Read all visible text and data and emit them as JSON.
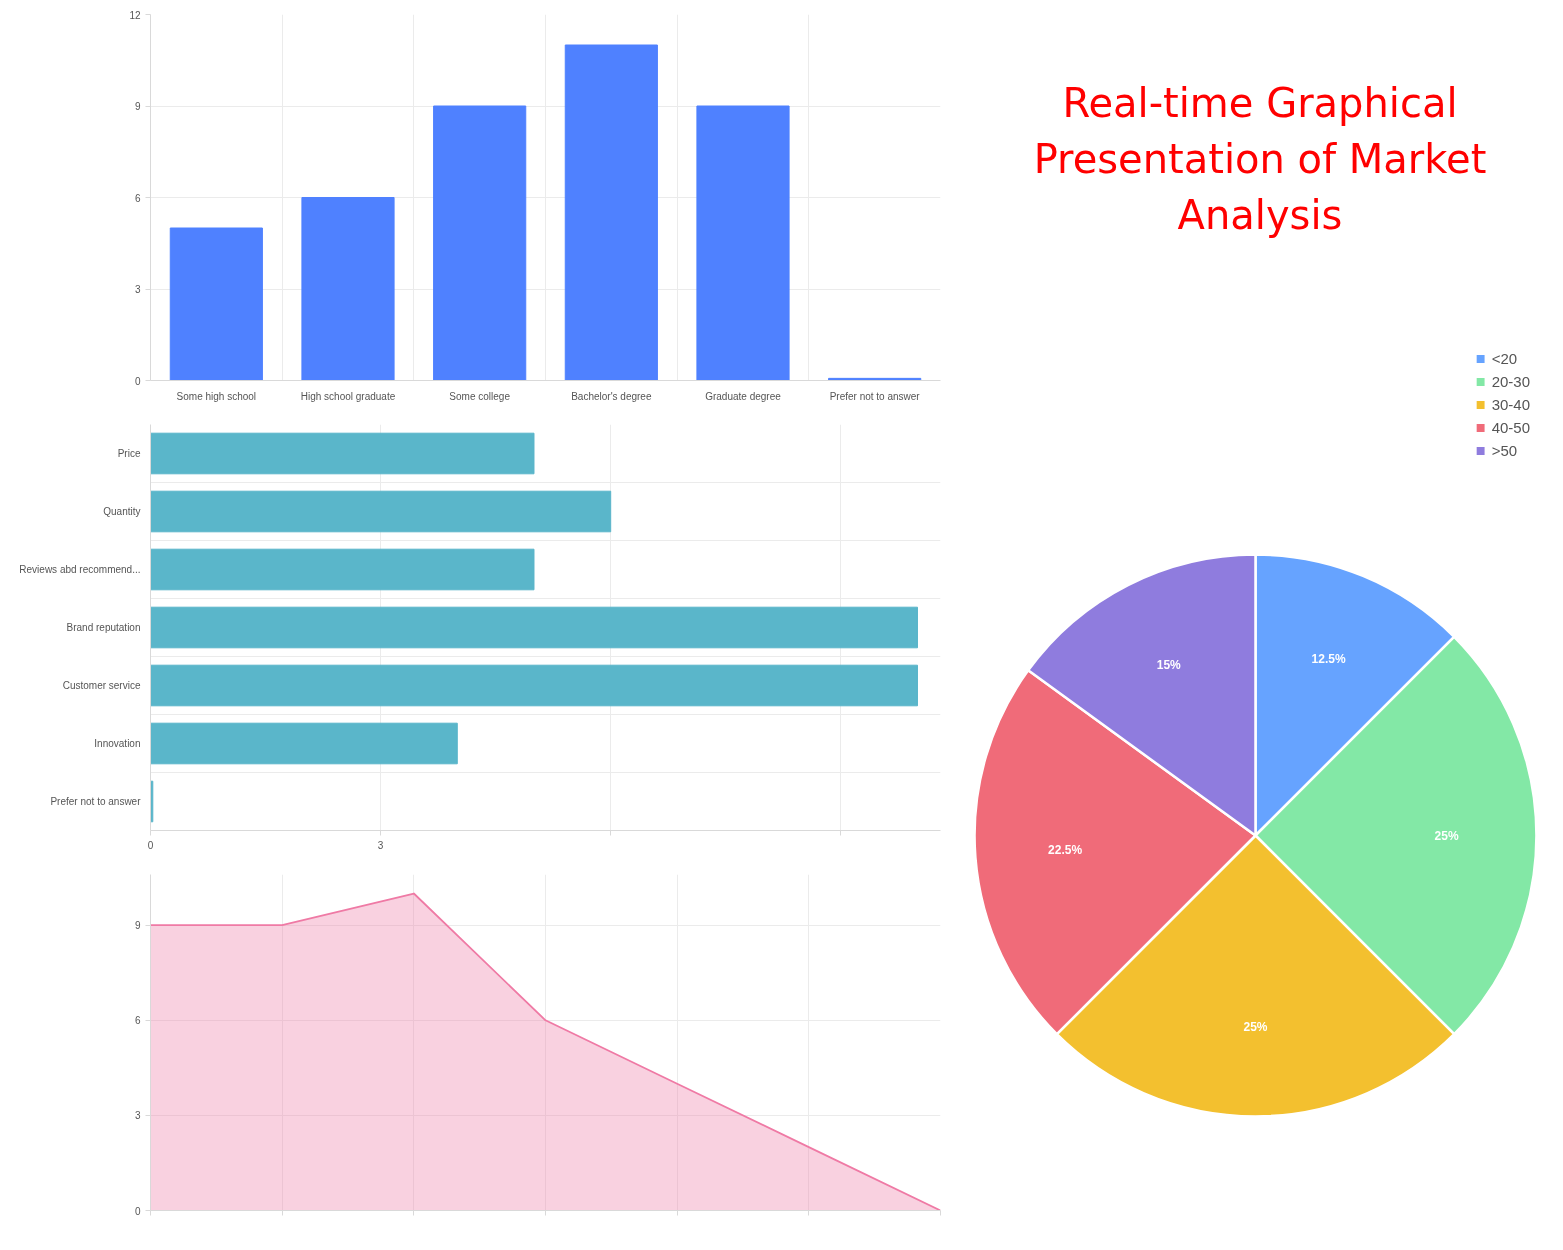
{
  "chart_data": [
    {
      "type": "bar",
      "categories": [
        "Some high school",
        "High school graduate",
        "Some college",
        "Bachelor's degree",
        "Graduate degree",
        "Prefer not to answer"
      ],
      "values": [
        5,
        6,
        9,
        11,
        9,
        0.07
      ],
      "color": "#4f81ff",
      "ylim": [
        0,
        12
      ],
      "yticks": [
        0,
        3,
        6,
        9,
        12
      ],
      "grid": true
    },
    {
      "type": "other",
      "title": "Real-time Graphical Presentation of Market Analysis"
    },
    {
      "type": "pie",
      "categories": [
        "<20",
        "20-30",
        "30-40",
        "40-50",
        ">50"
      ],
      "values": [
        12.5,
        25,
        25,
        22.5,
        15
      ],
      "colors": [
        "#66a3ff",
        "#83e8a6",
        "#f3c02f",
        "#f06b79",
        "#8f7cde"
      ],
      "value_labels": [
        "12.5%",
        "25%",
        "25%",
        "22.5%",
        "15%"
      ],
      "legend": "top right"
    },
    {
      "type": "bar",
      "orientation": "horizontal",
      "categories": [
        "Price",
        "Quantity",
        "Reviews abd recommend...",
        "Brand reputation",
        "Customer service",
        "Innovation",
        "Prefer not to answer"
      ],
      "values": [
        5,
        6,
        5,
        10,
        10,
        4,
        0.03
      ],
      "color": "#5ab6ca",
      "xlim": [
        0,
        10.3
      ],
      "xticks": [
        0,
        3,
        {
          "value": 6,
          "label": null
        },
        {
          "value": 9,
          "label": null
        }
      ],
      "grid": true
    },
    {
      "type": "area",
      "categories": [
        null,
        null,
        null,
        null,
        null,
        null,
        null
      ],
      "values": [
        9,
        9,
        10,
        6,
        4,
        2,
        0
      ],
      "color": "#ef7aa5",
      "ylim": [
        0,
        10.6
      ],
      "yticks": [
        0,
        3,
        6,
        9
      ],
      "grid": true
    }
  ]
}
